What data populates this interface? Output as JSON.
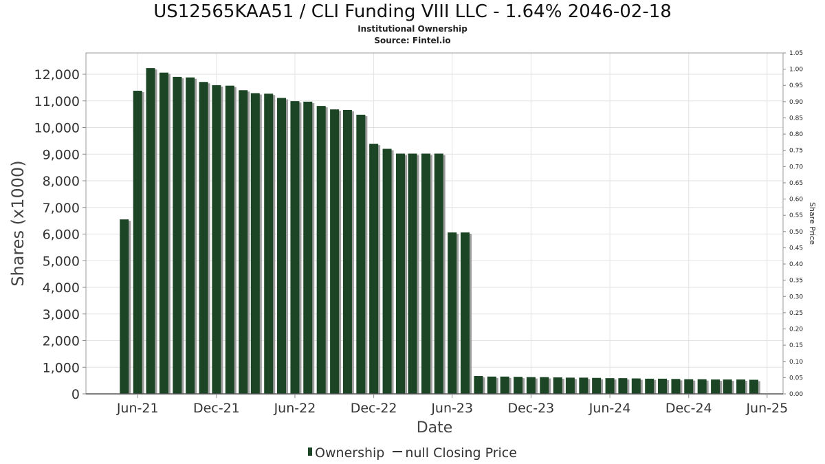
{
  "chart_data": {
    "type": "bar",
    "title": "US12565KAA51 / CLI Funding VIII LLC - 1.64% 2046-02-18",
    "subtitle": "Institutional Ownership",
    "source": "Source: Fintel.io",
    "xlabel": "Date",
    "ylabel": "Shares (x1000)",
    "y2label": "Share Price",
    "x_range": [
      "2021-02-01",
      "2025-07-08"
    ],
    "x_ticks": [
      {
        "date": "2021-06-01",
        "label": "Jun-21"
      },
      {
        "date": "2021-12-01",
        "label": "Dec-21"
      },
      {
        "date": "2022-06-01",
        "label": "Jun-22"
      },
      {
        "date": "2022-12-01",
        "label": "Dec-22"
      },
      {
        "date": "2023-06-01",
        "label": "Jun-23"
      },
      {
        "date": "2023-12-01",
        "label": "Dec-23"
      },
      {
        "date": "2024-06-01",
        "label": "Jun-24"
      },
      {
        "date": "2024-12-01",
        "label": "Dec-24"
      },
      {
        "date": "2025-06-01",
        "label": "Jun-25"
      }
    ],
    "ylim": [
      0,
      12800
    ],
    "y_ticks": [
      "0",
      "1,000",
      "2,000",
      "3,000",
      "4,000",
      "5,000",
      "6,000",
      "7,000",
      "8,000",
      "9,000",
      "10,000",
      "11,000",
      "12,000"
    ],
    "y2lim": [
      0,
      1.05
    ],
    "y2_ticks": [
      "0.00",
      "0.05",
      "0.10",
      "0.15",
      "0.20",
      "0.25",
      "0.30",
      "0.35",
      "0.40",
      "0.45",
      "0.50",
      "0.55",
      "0.60",
      "0.65",
      "0.70",
      "0.75",
      "0.80",
      "0.85",
      "0.90",
      "0.95",
      "1.00",
      "1.05"
    ],
    "grid": true,
    "legend_position": "bottom",
    "series": [
      {
        "name": "Ownership",
        "type": "bar",
        "color": "#1b4524",
        "shadow_color": "#9e9e9e",
        "points": [
          {
            "date": "2021-05-01",
            "value": 6550
          },
          {
            "date": "2021-06-01",
            "value": 11380
          },
          {
            "date": "2021-07-01",
            "value": 12230
          },
          {
            "date": "2021-08-01",
            "value": 12060
          },
          {
            "date": "2021-09-01",
            "value": 11900
          },
          {
            "date": "2021-10-01",
            "value": 11880
          },
          {
            "date": "2021-11-01",
            "value": 11710
          },
          {
            "date": "2021-12-01",
            "value": 11590
          },
          {
            "date": "2022-01-01",
            "value": 11570
          },
          {
            "date": "2022-02-01",
            "value": 11400
          },
          {
            "date": "2022-03-01",
            "value": 11290
          },
          {
            "date": "2022-04-01",
            "value": 11270
          },
          {
            "date": "2022-05-01",
            "value": 11110
          },
          {
            "date": "2022-06-01",
            "value": 10990
          },
          {
            "date": "2022-07-01",
            "value": 10970
          },
          {
            "date": "2022-08-01",
            "value": 10810
          },
          {
            "date": "2022-09-01",
            "value": 10680
          },
          {
            "date": "2022-10-01",
            "value": 10660
          },
          {
            "date": "2022-11-01",
            "value": 10480
          },
          {
            "date": "2022-12-01",
            "value": 9390
          },
          {
            "date": "2023-01-01",
            "value": 9200
          },
          {
            "date": "2023-02-01",
            "value": 9020
          },
          {
            "date": "2023-03-01",
            "value": 9020
          },
          {
            "date": "2023-04-01",
            "value": 9020
          },
          {
            "date": "2023-05-01",
            "value": 9020
          },
          {
            "date": "2023-06-01",
            "value": 6060
          },
          {
            "date": "2023-07-01",
            "value": 6060
          },
          {
            "date": "2023-08-01",
            "value": 670
          },
          {
            "date": "2023-09-01",
            "value": 650
          },
          {
            "date": "2023-10-01",
            "value": 650
          },
          {
            "date": "2023-11-01",
            "value": 640
          },
          {
            "date": "2023-12-01",
            "value": 630
          },
          {
            "date": "2024-01-01",
            "value": 630
          },
          {
            "date": "2024-02-01",
            "value": 620
          },
          {
            "date": "2024-03-01",
            "value": 610
          },
          {
            "date": "2024-04-01",
            "value": 610
          },
          {
            "date": "2024-05-01",
            "value": 600
          },
          {
            "date": "2024-06-01",
            "value": 590
          },
          {
            "date": "2024-07-01",
            "value": 590
          },
          {
            "date": "2024-08-01",
            "value": 580
          },
          {
            "date": "2024-09-01",
            "value": 570
          },
          {
            "date": "2024-10-01",
            "value": 570
          },
          {
            "date": "2024-11-01",
            "value": 560
          },
          {
            "date": "2024-12-01",
            "value": 550
          },
          {
            "date": "2025-01-01",
            "value": 550
          },
          {
            "date": "2025-02-01",
            "value": 540
          },
          {
            "date": "2025-03-01",
            "value": 540
          },
          {
            "date": "2025-04-01",
            "value": 540
          },
          {
            "date": "2025-05-01",
            "value": 530
          }
        ]
      },
      {
        "name": "null Closing Price",
        "type": "line",
        "color": "#333333",
        "points": []
      }
    ]
  },
  "legend": {
    "ownership_label": "Ownership",
    "price_label": "null Closing Price"
  }
}
